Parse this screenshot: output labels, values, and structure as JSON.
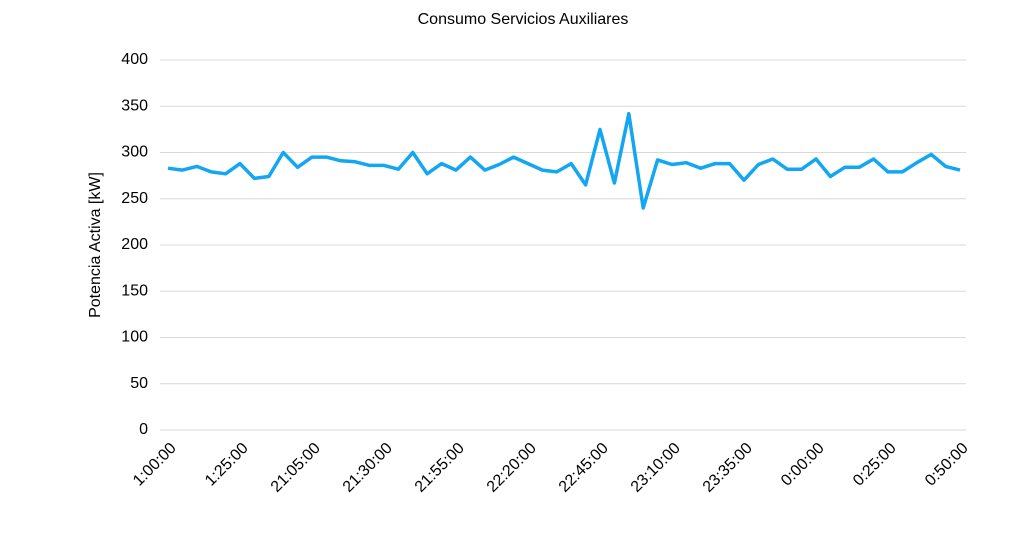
{
  "chart_data": {
    "type": "line",
    "title": "Consumo Servicios Auxiliares",
    "y_label": "Potencia Activa [kW]",
    "categories": [
      "1:00:00",
      null,
      null,
      null,
      null,
      "1:25:00",
      null,
      null,
      null,
      null,
      "21:05:00",
      null,
      null,
      null,
      null,
      "21:30:00",
      null,
      null,
      null,
      null,
      "21:55:00",
      null,
      null,
      null,
      null,
      "22:20:00",
      null,
      null,
      null,
      null,
      "22:45:00",
      null,
      null,
      null,
      null,
      "23:10:00",
      null,
      null,
      null,
      null,
      "23:35:00",
      null,
      null,
      null,
      null,
      "0:00:00",
      null,
      null,
      null,
      null,
      "0:25:00",
      null,
      null,
      null,
      null,
      "0:50:00"
    ],
    "series": [
      {
        "name": "Potencia Activa",
        "color": "#13a6f2",
        "values": [
          283,
          281,
          285,
          279,
          277,
          288,
          272,
          274,
          300,
          284,
          295,
          295,
          291,
          290,
          286,
          286,
          282,
          300,
          277,
          288,
          281,
          295,
          281,
          287,
          295,
          288,
          281,
          279,
          288,
          265,
          325,
          267,
          342,
          240,
          292,
          287,
          289,
          283,
          288,
          288,
          270,
          287,
          293,
          282,
          282,
          293,
          274,
          284,
          284,
          293,
          279,
          279,
          289,
          298,
          285,
          281
        ]
      }
    ],
    "ylim": [
      0,
      400
    ],
    "yticks": [
      0,
      50,
      100,
      150,
      200,
      250,
      300,
      350,
      400
    ],
    "grid": true
  }
}
